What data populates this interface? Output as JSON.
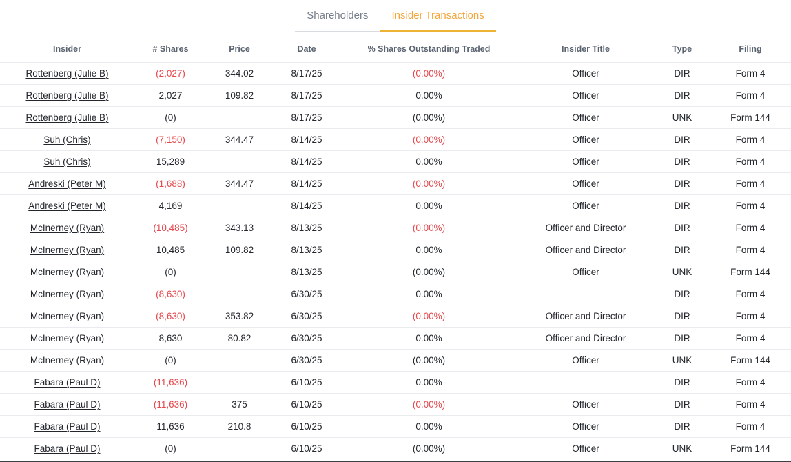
{
  "tabs": [
    {
      "label": "Shareholders",
      "active": false
    },
    {
      "label": "Insider Transactions",
      "active": true
    }
  ],
  "colors": {
    "accent": "#f5a63b",
    "accent_underline": "#ecb335",
    "negative": "#e5484d"
  },
  "table": {
    "columns": [
      "Insider",
      "# Shares",
      "Price",
      "Date",
      "% Shares Outstanding Traded",
      "Insider Title",
      "Type",
      "Filing"
    ],
    "rows": [
      {
        "insider": "Rottenberg (Julie B)",
        "shares": "(2,027)",
        "shares_neg": true,
        "price": "344.02",
        "date": "8/17/25",
        "pct": "(0.00%)",
        "pct_neg": true,
        "title": "Officer",
        "type": "DIR",
        "filing": "Form 4"
      },
      {
        "insider": "Rottenberg (Julie B)",
        "shares": "2,027",
        "shares_neg": false,
        "price": "109.82",
        "date": "8/17/25",
        "pct": "0.00%",
        "pct_neg": false,
        "title": "Officer",
        "type": "DIR",
        "filing": "Form 4"
      },
      {
        "insider": "Rottenberg (Julie B)",
        "shares": "(0)",
        "shares_neg": false,
        "price": "",
        "date": "8/17/25",
        "pct": "(0.00%)",
        "pct_neg": false,
        "title": "Officer",
        "type": "UNK",
        "filing": "Form 144"
      },
      {
        "insider": "Suh (Chris)",
        "shares": "(7,150)",
        "shares_neg": true,
        "price": "344.47",
        "date": "8/14/25",
        "pct": "(0.00%)",
        "pct_neg": true,
        "title": "Officer",
        "type": "DIR",
        "filing": "Form 4"
      },
      {
        "insider": "Suh (Chris)",
        "shares": "15,289",
        "shares_neg": false,
        "price": "",
        "date": "8/14/25",
        "pct": "0.00%",
        "pct_neg": false,
        "title": "Officer",
        "type": "DIR",
        "filing": "Form 4"
      },
      {
        "insider": "Andreski (Peter M)",
        "shares": "(1,688)",
        "shares_neg": true,
        "price": "344.47",
        "date": "8/14/25",
        "pct": "(0.00%)",
        "pct_neg": true,
        "title": "Officer",
        "type": "DIR",
        "filing": "Form 4"
      },
      {
        "insider": "Andreski (Peter M)",
        "shares": "4,169",
        "shares_neg": false,
        "price": "",
        "date": "8/14/25",
        "pct": "0.00%",
        "pct_neg": false,
        "title": "Officer",
        "type": "DIR",
        "filing": "Form 4"
      },
      {
        "insider": "McInerney (Ryan)",
        "shares": "(10,485)",
        "shares_neg": true,
        "price": "343.13",
        "date": "8/13/25",
        "pct": "(0.00%)",
        "pct_neg": true,
        "title": "Officer and Director",
        "type": "DIR",
        "filing": "Form 4"
      },
      {
        "insider": "McInerney (Ryan)",
        "shares": "10,485",
        "shares_neg": false,
        "price": "109.82",
        "date": "8/13/25",
        "pct": "0.00%",
        "pct_neg": false,
        "title": "Officer and Director",
        "type": "DIR",
        "filing": "Form 4"
      },
      {
        "insider": "McInerney (Ryan)",
        "shares": "(0)",
        "shares_neg": false,
        "price": "",
        "date": "8/13/25",
        "pct": "(0.00%)",
        "pct_neg": false,
        "title": "Officer",
        "type": "UNK",
        "filing": "Form 144"
      },
      {
        "insider": "McInerney (Ryan)",
        "shares": "(8,630)",
        "shares_neg": true,
        "price": "",
        "date": "6/30/25",
        "pct": "0.00%",
        "pct_neg": false,
        "title": "",
        "type": "DIR",
        "filing": "Form 4"
      },
      {
        "insider": "McInerney (Ryan)",
        "shares": "(8,630)",
        "shares_neg": true,
        "price": "353.82",
        "date": "6/30/25",
        "pct": "(0.00%)",
        "pct_neg": true,
        "title": "Officer and Director",
        "type": "DIR",
        "filing": "Form 4"
      },
      {
        "insider": "McInerney (Ryan)",
        "shares": "8,630",
        "shares_neg": false,
        "price": "80.82",
        "date": "6/30/25",
        "pct": "0.00%",
        "pct_neg": false,
        "title": "Officer and Director",
        "type": "DIR",
        "filing": "Form 4"
      },
      {
        "insider": "McInerney (Ryan)",
        "shares": "(0)",
        "shares_neg": false,
        "price": "",
        "date": "6/30/25",
        "pct": "(0.00%)",
        "pct_neg": false,
        "title": "Officer",
        "type": "UNK",
        "filing": "Form 144"
      },
      {
        "insider": "Fabara (Paul D)",
        "shares": "(11,636)",
        "shares_neg": true,
        "price": "",
        "date": "6/10/25",
        "pct": "0.00%",
        "pct_neg": false,
        "title": "",
        "type": "DIR",
        "filing": "Form 4"
      },
      {
        "insider": "Fabara (Paul D)",
        "shares": "(11,636)",
        "shares_neg": true,
        "price": "375",
        "date": "6/10/25",
        "pct": "(0.00%)",
        "pct_neg": true,
        "title": "Officer",
        "type": "DIR",
        "filing": "Form 4"
      },
      {
        "insider": "Fabara (Paul D)",
        "shares": "11,636",
        "shares_neg": false,
        "price": "210.8",
        "date": "6/10/25",
        "pct": "0.00%",
        "pct_neg": false,
        "title": "Officer",
        "type": "DIR",
        "filing": "Form 4"
      },
      {
        "insider": "Fabara (Paul D)",
        "shares": "(0)",
        "shares_neg": false,
        "price": "",
        "date": "6/10/25",
        "pct": "(0.00%)",
        "pct_neg": false,
        "title": "Officer",
        "type": "UNK",
        "filing": "Form 144"
      }
    ]
  }
}
